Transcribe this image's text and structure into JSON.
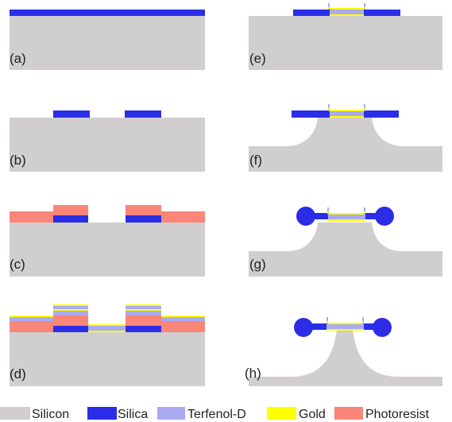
{
  "panels": {
    "a": "(a)",
    "b": "(b)",
    "c": "(c)",
    "d": "(d)",
    "e": "(e)",
    "f": "(f)",
    "g": "(g)",
    "h": "(h)"
  },
  "legend": {
    "silicon": "Silicon",
    "silica": "Silica",
    "terfenol": "Terfenol-D",
    "gold": "Gold",
    "photoresist": "Photoresist"
  },
  "colors": {
    "silicon": "#d0cece",
    "silica": "#2b2ee6",
    "terfenol": "#aaaaf2",
    "gold": "#ffff00",
    "photoresist": "#f98678"
  }
}
